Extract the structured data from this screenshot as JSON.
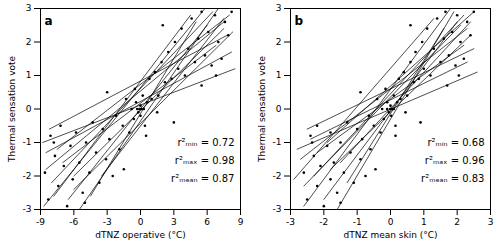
{
  "chart_data": [
    {
      "type": "scatter",
      "title": "a",
      "xlabel": "dTNZ operative (°C)",
      "ylabel": "Thermal sensation vote",
      "xlim": [
        -9,
        9
      ],
      "xticks": [
        -9,
        -6,
        -3,
        0,
        3,
        6,
        9
      ],
      "ylim": [
        -3,
        3
      ],
      "yticks": [
        -3,
        -2,
        -1,
        0,
        1,
        2,
        3
      ],
      "grid": false,
      "color": "#000000",
      "marker": "dot",
      "annotations": [
        "r²ₘᵢₙ = 0.72",
        "r²ₘₐₓ = 0.98",
        "r²ₘₑₐₙ = 0.87"
      ],
      "points": {
        "x": [
          -8.6,
          -8.3,
          -8.1,
          -7.7,
          -7.4,
          -7.2,
          -6.9,
          -6.6,
          -6.3,
          -6.1,
          -5.8,
          -5.5,
          -5.2,
          -4.9,
          -4.6,
          -4.3,
          -4.0,
          -3.7,
          -3.4,
          -3.1,
          -2.8,
          -2.5,
          -2.2,
          -1.9,
          -1.6,
          -1.3,
          -1.0,
          -0.8,
          -0.6,
          -0.4,
          -0.3,
          -0.2,
          -0.1,
          0,
          0,
          0,
          0.1,
          0.2,
          0.3,
          0.4,
          0.6,
          0.8,
          1.0,
          1.3,
          1.6,
          1.9,
          2.2,
          2.5,
          2.8,
          3.1,
          3.4,
          3.7,
          4.0,
          4.3,
          4.6,
          4.9,
          5.2,
          5.5,
          5.8,
          6.1,
          6.4,
          6.7,
          7.0,
          7.3,
          7.6,
          7.9,
          8.2,
          -0.5,
          0.5,
          -1.5,
          1.5,
          3,
          -3,
          5.5,
          -5,
          6.8,
          -7.8,
          2
        ],
        "y": [
          -1.9,
          -2.7,
          -0.8,
          -1.4,
          -2.3,
          -0.5,
          -1.7,
          -2.9,
          -1.1,
          -2.1,
          -0.7,
          -1.6,
          -2.5,
          -1.0,
          -1.9,
          -0.4,
          -1.3,
          -2.2,
          -0.6,
          -1.5,
          -0.9,
          -2.0,
          -0.2,
          -1.2,
          -0.5,
          0.3,
          -0.7,
          0,
          -0.3,
          0.2,
          0,
          -0.1,
          0,
          0,
          0.1,
          -0.2,
          0,
          0.4,
          0,
          -0.5,
          0.2,
          0.9,
          0.3,
          1.1,
          0.4,
          1.4,
          0.8,
          1.7,
          0.9,
          2.0,
          1.2,
          2.4,
          1.0,
          1.8,
          2.7,
          1.4,
          2.1,
          2.9,
          1.6,
          2.3,
          1.3,
          2.8,
          2.0,
          1.5,
          2.6,
          2.2,
          2.9,
          0.6,
          -0.8,
          -1.8,
          -0.1,
          -0.4,
          0.5,
          0.7,
          -2.8,
          1.0,
          -1.0,
          2.5
        ]
      },
      "lines": [
        {
          "x": [
            -8.7,
            5.8
          ],
          "y": [
            -2.9,
            3
          ]
        },
        {
          "x": [
            -8,
            6.5
          ],
          "y": [
            -2.2,
            2.9
          ]
        },
        {
          "x": [
            -8.5,
            7.5
          ],
          "y": [
            -1.8,
            2.6
          ]
        },
        {
          "x": [
            -8.2,
            7.8
          ],
          "y": [
            -0.6,
            2.2
          ]
        },
        {
          "x": [
            -7.5,
            8
          ],
          "y": [
            -1.2,
            2.8
          ]
        },
        {
          "x": [
            -6.5,
            6
          ],
          "y": [
            -2.7,
            2.5
          ]
        },
        {
          "x": [
            -6,
            7.5
          ],
          "y": [
            -2,
            2.4
          ]
        },
        {
          "x": [
            -8.5,
            8.2
          ],
          "y": [
            -1.3,
            1.7
          ]
        },
        {
          "x": [
            -5.5,
            7
          ],
          "y": [
            -3,
            3
          ]
        },
        {
          "x": [
            -7,
            6.8
          ],
          "y": [
            -1.6,
            1.9
          ]
        },
        {
          "x": [
            -4.5,
            5
          ],
          "y": [
            -2.6,
            2.6
          ]
        },
        {
          "x": [
            -8.8,
            8.5
          ],
          "y": [
            -1,
            1.2
          ]
        },
        {
          "x": [
            -6,
            8.3
          ],
          "y": [
            -2.4,
            2.3
          ]
        },
        {
          "x": [
            -3.5,
            7.5
          ],
          "y": [
            -2,
            2.7
          ]
        },
        {
          "x": [
            -7.8,
            4.5
          ],
          "y": [
            -2.6,
            2.8
          ]
        }
      ]
    },
    {
      "type": "scatter",
      "title": "b",
      "xlabel": "dTNZ mean skin (°C)",
      "ylabel": "Thermal sensation vote",
      "xlim": [
        -3,
        3
      ],
      "xticks": [
        -3,
        -2,
        -1,
        0,
        1,
        2,
        3
      ],
      "ylim": [
        -3,
        3
      ],
      "yticks": [
        -3,
        -2,
        -1,
        0,
        1,
        2,
        3
      ],
      "grid": false,
      "color": "#000000",
      "marker": "dot",
      "annotations": [
        "r²ₘᵢₙ = 0.68",
        "r²ₘₐₓ = 0.96",
        "r²ₘₑₐₙ = 0.83"
      ],
      "points": {
        "x": [
          -2.6,
          -2.5,
          -2.4,
          -2.3,
          -2.2,
          -2.2,
          -2.1,
          -2.0,
          -1.9,
          -1.8,
          -1.8,
          -1.7,
          -1.6,
          -1.5,
          -1.4,
          -1.3,
          -1.2,
          -1.1,
          -1.0,
          -0.9,
          -0.85,
          -0.75,
          -0.65,
          -0.6,
          -0.5,
          -0.4,
          -0.3,
          -0.25,
          -0.2,
          -0.1,
          -0.1,
          -0.05,
          0,
          0,
          0,
          0.02,
          0.05,
          0.1,
          0.1,
          0.15,
          0.2,
          0.25,
          0.3,
          0.4,
          0.5,
          0.6,
          0.7,
          0.75,
          0.85,
          0.95,
          1.0,
          1.1,
          1.2,
          1.3,
          1.4,
          1.5,
          1.6,
          1.65,
          1.75,
          1.85,
          1.95,
          2.0,
          2.1,
          2.2,
          2.3,
          2.4,
          2.5,
          -0.15,
          0.15,
          -0.45,
          0.45,
          0.9,
          -0.9,
          1.7,
          -1.5,
          2.05,
          -2.35,
          0.6
        ],
        "y": [
          -1.9,
          -2.7,
          -0.8,
          -1.4,
          -2.3,
          -0.5,
          -1.7,
          -2.9,
          -1.1,
          -2.1,
          -0.7,
          -1.6,
          -2.5,
          -1.0,
          -1.9,
          -0.4,
          -1.3,
          -2.2,
          -0.6,
          -1.5,
          -0.9,
          -2.0,
          -0.2,
          -1.2,
          -0.5,
          0.3,
          -0.7,
          0,
          -0.3,
          0.2,
          0,
          -0.1,
          0,
          0,
          0.1,
          -0.2,
          0,
          0.4,
          0,
          -0.5,
          0.2,
          0.9,
          0.3,
          1.1,
          0.4,
          1.4,
          0.8,
          1.7,
          0.9,
          2.0,
          1.2,
          2.4,
          1.0,
          1.8,
          2.7,
          1.4,
          2.1,
          2.9,
          1.6,
          2.3,
          1.3,
          2.8,
          2.0,
          1.5,
          2.6,
          2.2,
          2.9,
          0.6,
          -0.8,
          -1.8,
          -0.1,
          -0.4,
          0.5,
          0.7,
          -2.8,
          1.0,
          -1.0,
          2.5
        ]
      },
      "lines": [
        {
          "x": [
            -2.6,
            1.8
          ],
          "y": [
            -2.9,
            3
          ]
        },
        {
          "x": [
            -2.3,
            2.2
          ],
          "y": [
            -2,
            2.8
          ]
        },
        {
          "x": [
            -2.7,
            2.3
          ],
          "y": [
            -1.5,
            2.4
          ]
        },
        {
          "x": [
            -2.5,
            2.5
          ],
          "y": [
            -0.6,
            1.8
          ]
        },
        {
          "x": [
            -2,
            2
          ],
          "y": [
            -2.7,
            2.6
          ]
        },
        {
          "x": [
            -1.8,
            2.4
          ],
          "y": [
            -1.8,
            2.2
          ]
        },
        {
          "x": [
            -2.8,
            2.6
          ],
          "y": [
            -1.2,
            1.1
          ]
        },
        {
          "x": [
            -1.6,
            1.9
          ],
          "y": [
            -3,
            2.9
          ]
        },
        {
          "x": [
            -2.2,
            2.2
          ],
          "y": [
            -1.3,
            1.9
          ]
        },
        {
          "x": [
            -1.3,
            1.6
          ],
          "y": [
            -2.2,
            2.4
          ]
        },
        {
          "x": [
            -2.6,
            2.1
          ],
          "y": [
            -2.3,
            2.5
          ]
        },
        {
          "x": [
            -1.9,
            2.5
          ],
          "y": [
            -1,
            2.9
          ]
        },
        {
          "x": [
            -2.4,
            2.3
          ],
          "y": [
            -0.9,
            1.4
          ]
        },
        {
          "x": [
            -1.5,
            2.4
          ],
          "y": [
            -1.6,
            2.6
          ]
        },
        {
          "x": [
            -2.9,
            1.3
          ],
          "y": [
            -2.1,
            2.7
          ]
        }
      ]
    }
  ]
}
